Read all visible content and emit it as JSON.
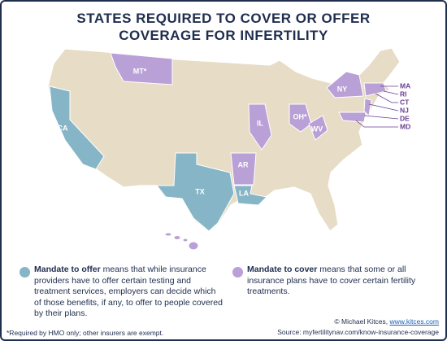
{
  "header": {
    "title_lines": [
      "STATES REQUIRED TO COVER OR OFFER",
      "COVERAGE FOR INFERTILITY"
    ]
  },
  "map": {
    "offer_states": [
      "CA",
      "TX",
      "LA"
    ],
    "cover_states": [
      "MT*",
      "IL",
      "NY",
      "OH*",
      "WV",
      "AR",
      "HI"
    ],
    "side_labels": [
      "MA",
      "RI",
      "CT",
      "NJ",
      "DE",
      "MD"
    ]
  },
  "legend": [
    {
      "term": "Mandate to offer",
      "text": "means that while insurance providers have to offer certain testing and treatment services, employers can decide which of those benefits, if any, to offer to people covered by their plans."
    },
    {
      "term": "Mandate to cover",
      "text": "means that some or all insurance plans have to cover certain fertility treatments."
    }
  ],
  "footnote": "*Required by HMO only; other insurers are exempt.",
  "credit": {
    "prefix": "© Michael Kitces,",
    "link": "www.kitces.com"
  },
  "source": "Source: myfertilitynav.com/know-insurance-coverage"
}
